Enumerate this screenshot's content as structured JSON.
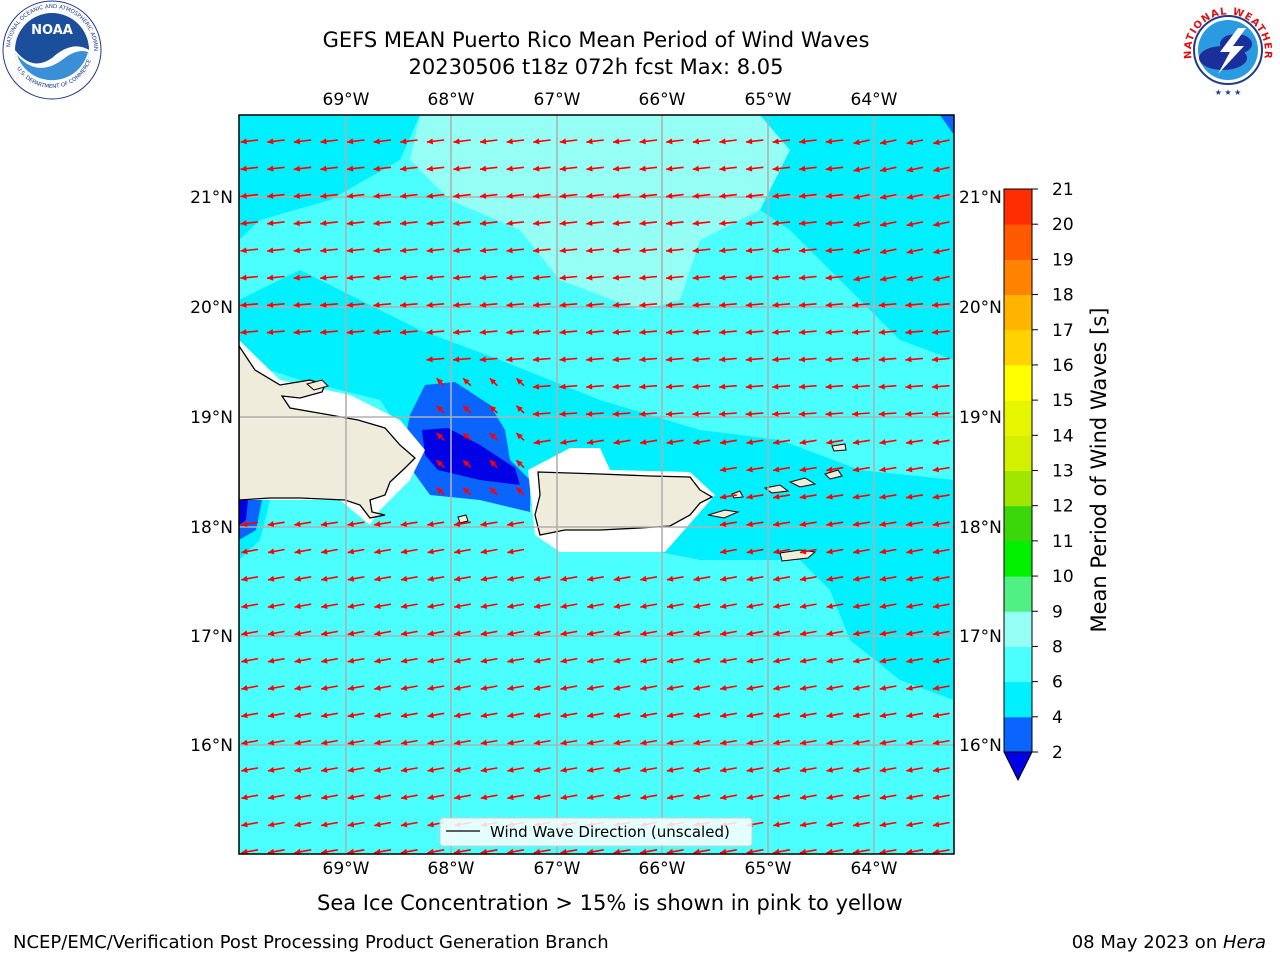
{
  "header": {
    "title_line1": "GEFS MEAN Puerto Rico Mean Period of Wind Waves",
    "title_line2": "20230506 t18z 072h fcst   Max: 8.05"
  },
  "map": {
    "lon_labels": [
      "69°W",
      "68°W",
      "67°W",
      "66°W",
      "65°W",
      "64°W"
    ],
    "lat_labels": [
      "21°N",
      "20°N",
      "19°N",
      "18°N",
      "17°N",
      "16°N"
    ],
    "legend_label": "Wind Wave Direction (unscaled)",
    "arrow_color": "#ff0000",
    "land_color": "#efecdc",
    "grid_color": "#b0b0b0"
  },
  "colorbar": {
    "label": "Mean Period of Wind Waves [s]",
    "ticks": [
      "2",
      "4",
      "6",
      "8",
      "9",
      "10",
      "11",
      "12",
      "13",
      "14",
      "15",
      "16",
      "17",
      "18",
      "19",
      "20",
      "21"
    ],
    "colors": [
      "#0a64ff",
      "#00f0ff",
      "#4bffff",
      "#96fff5",
      "#50f082",
      "#00f000",
      "#3cd70a",
      "#a0e600",
      "#d2f000",
      "#e6f500",
      "#ffff00",
      "#ffd200",
      "#ffb400",
      "#ff8200",
      "#ff5a00",
      "#ff2d00"
    ],
    "under_color": "#0000e6"
  },
  "footer": {
    "ice_note": "Sea Ice Concentration > 15% is shown in pink to yellow",
    "left": "NCEP/EMC/Verification Post Processing Product Generation Branch",
    "right_date": "08 May 2023 on ",
    "right_host": "Hera"
  },
  "logos": {
    "noaa_text": "NOAA",
    "noaa_ring_top": "NATIONAL OCEANIC AND ATMOSPHERIC ADMINISTRATION",
    "noaa_ring_bottom": "U.S. DEPARTMENT OF COMMERCE",
    "nws_ring": "NATIONAL WEATHER SERVICE"
  }
}
